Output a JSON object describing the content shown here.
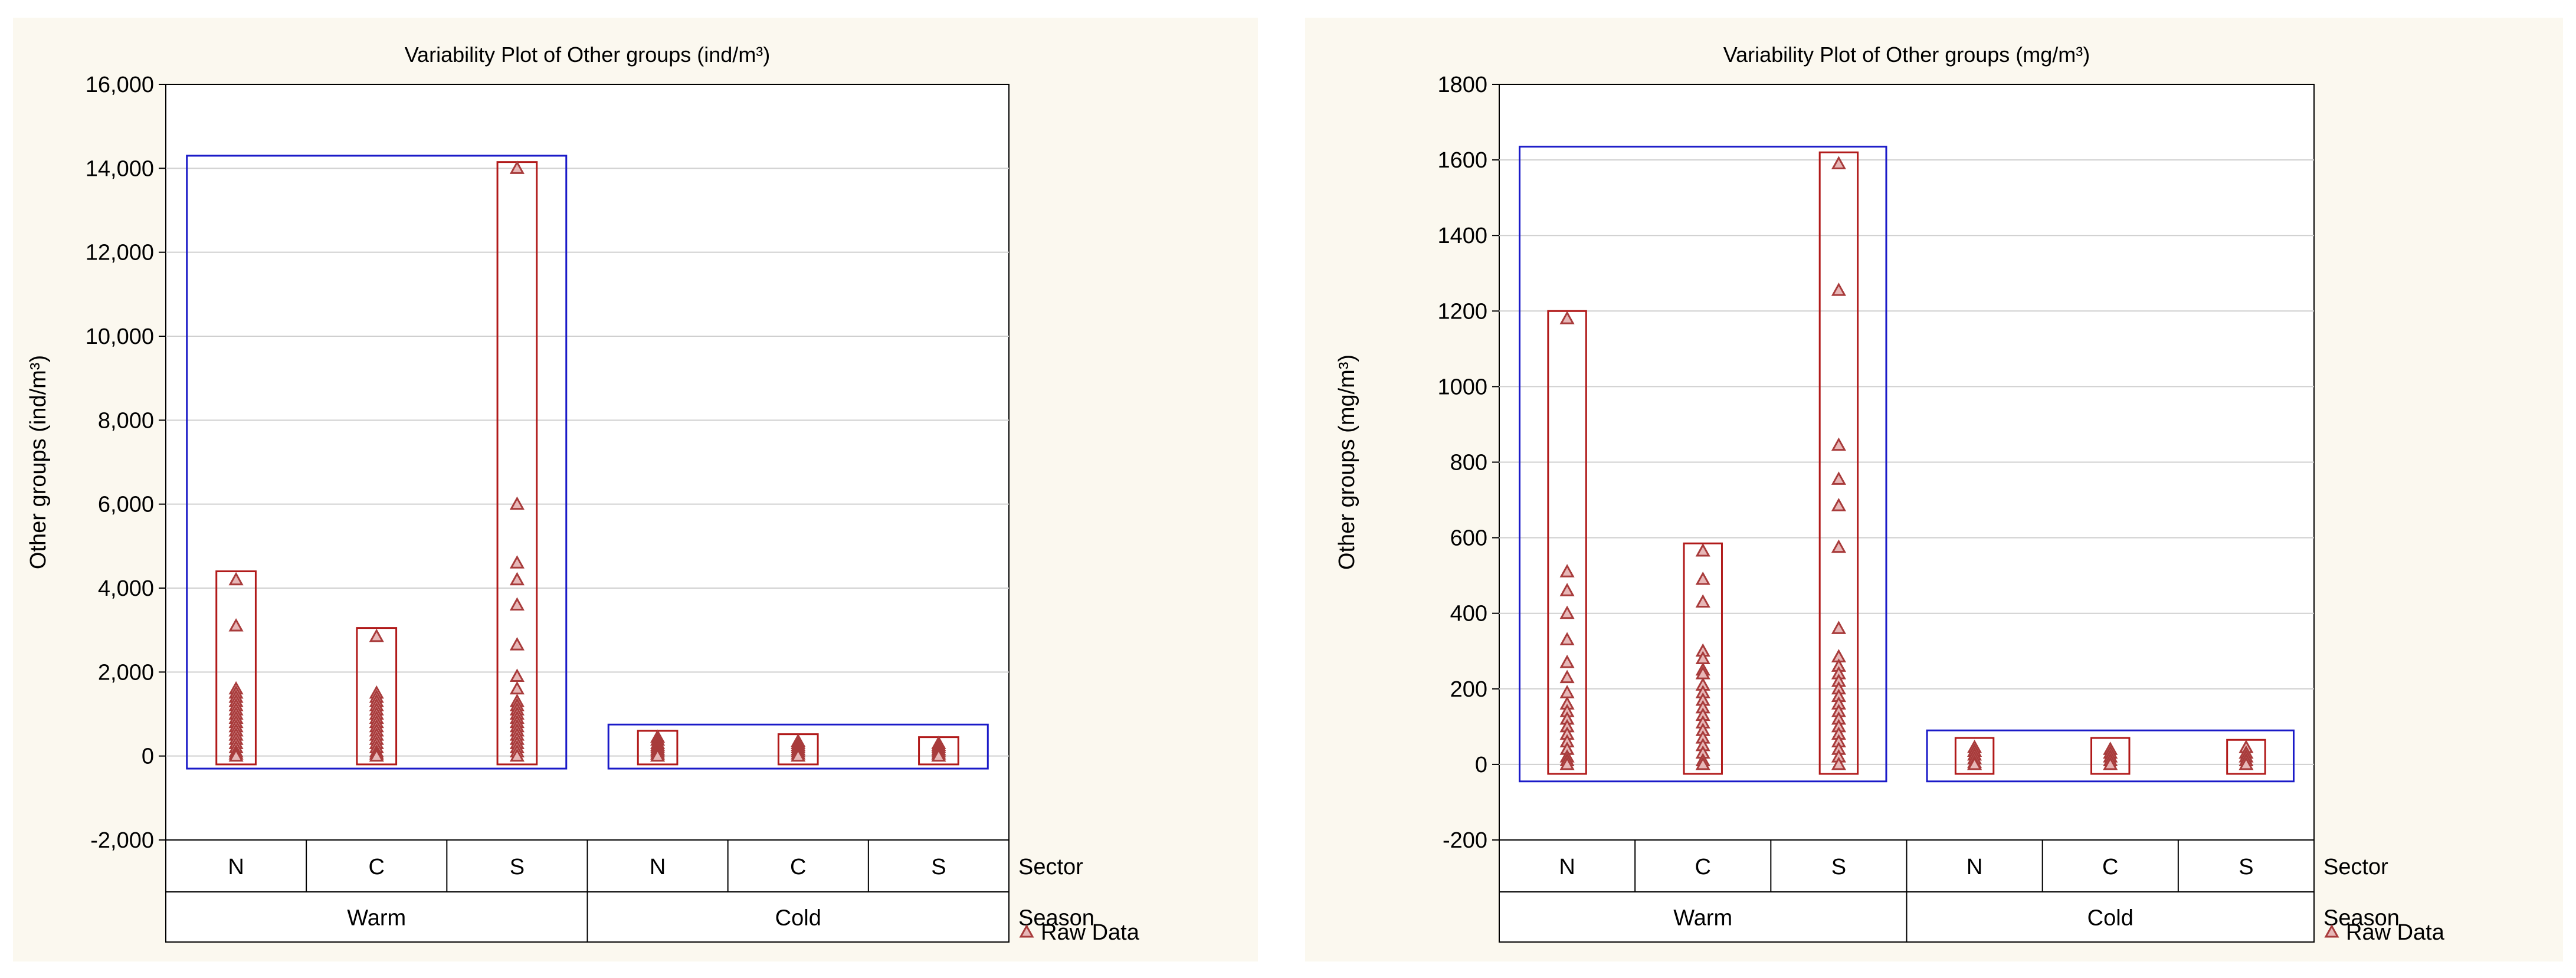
{
  "colors": {
    "panel_background": "#fbf8ef",
    "plot_background": "#ffffff",
    "raw_data": "#a83b3b",
    "group_box": "#b11a1a",
    "season_box": "#1a1ac8",
    "gridline": "#cfcfcf"
  },
  "legend": {
    "label": "Raw Data",
    "icon": "triangle-marker-icon"
  },
  "chart_data": [
    {
      "type": "scatter",
      "title": "Variability Plot of Other groups (ind/m³)",
      "ylabel": "Other groups (ind/m³)",
      "xlabel": "",
      "ylim": [
        -2000,
        16000
      ],
      "yticks": [
        -2000,
        0,
        2000,
        4000,
        6000,
        8000,
        10000,
        12000,
        14000,
        16000
      ],
      "ytick_labels": [
        "-2,000",
        "0",
        "2,000",
        "4,000",
        "6,000",
        "8,000",
        "10,000",
        "12,000",
        "14,000",
        "16,000"
      ],
      "grid": true,
      "factor_labels": {
        "inner": "Sector",
        "outer": "Season"
      },
      "seasons": [
        {
          "label": "Warm",
          "box": [
            -300,
            14300
          ]
        },
        {
          "label": "Cold",
          "box": [
            -300,
            750
          ]
        }
      ],
      "groups": [
        {
          "season": "Warm",
          "sector": "N",
          "box": [
            -200,
            4400
          ],
          "values": [
            4200,
            3100,
            1600,
            1500,
            1400,
            1300,
            1200,
            1100,
            1000,
            900,
            800,
            700,
            600,
            500,
            400,
            300,
            200,
            100,
            50,
            0
          ]
        },
        {
          "season": "Warm",
          "sector": "C",
          "box": [
            -200,
            3050
          ],
          "values": [
            2850,
            1500,
            1400,
            1300,
            1200,
            1100,
            1000,
            900,
            800,
            700,
            600,
            500,
            400,
            300,
            200,
            100,
            50,
            0
          ]
        },
        {
          "season": "Warm",
          "sector": "S",
          "box": [
            -200,
            14150
          ],
          "values": [
            14000,
            6000,
            4600,
            4200,
            3600,
            2650,
            1900,
            1600,
            1300,
            1200,
            1100,
            1000,
            900,
            800,
            700,
            600,
            500,
            400,
            300,
            200,
            100,
            0
          ]
        },
        {
          "season": "Cold",
          "sector": "N",
          "box": [
            -200,
            600
          ],
          "values": [
            450,
            380,
            300,
            250,
            200,
            150,
            100,
            50,
            0
          ]
        },
        {
          "season": "Cold",
          "sector": "C",
          "box": [
            -200,
            520
          ],
          "values": [
            350,
            300,
            250,
            200,
            150,
            100,
            50,
            0
          ]
        },
        {
          "season": "Cold",
          "sector": "S",
          "box": [
            -200,
            450
          ],
          "values": [
            300,
            250,
            200,
            150,
            100,
            50,
            0
          ]
        }
      ]
    },
    {
      "type": "scatter",
      "title": "Variability Plot of Other groups (mg/m³)",
      "ylabel": "Other groups (mg/m³)",
      "xlabel": "",
      "ylim": [
        -200,
        1800
      ],
      "yticks": [
        -200,
        0,
        200,
        400,
        600,
        800,
        1000,
        1200,
        1400,
        1600,
        1800
      ],
      "ytick_labels": [
        "-200",
        "0",
        "200",
        "400",
        "600",
        "800",
        "1000",
        "1200",
        "1400",
        "1600",
        "1800"
      ],
      "grid": true,
      "factor_labels": {
        "inner": "Sector",
        "outer": "Season"
      },
      "seasons": [
        {
          "label": "Warm",
          "box": [
            -45,
            1635
          ]
        },
        {
          "label": "Cold",
          "box": [
            -45,
            90
          ]
        }
      ],
      "groups": [
        {
          "season": "Warm",
          "sector": "N",
          "box": [
            -25,
            1200
          ],
          "values": [
            1180,
            510,
            460,
            400,
            330,
            270,
            230,
            190,
            160,
            140,
            120,
            100,
            80,
            60,
            40,
            20,
            10,
            0
          ]
        },
        {
          "season": "Warm",
          "sector": "C",
          "box": [
            -25,
            585
          ],
          "values": [
            565,
            490,
            430,
            300,
            280,
            250,
            240,
            210,
            190,
            170,
            150,
            130,
            110,
            90,
            70,
            50,
            30,
            10,
            0
          ]
        },
        {
          "season": "Warm",
          "sector": "S",
          "box": [
            -25,
            1620
          ],
          "values": [
            1590,
            1255,
            845,
            755,
            685,
            575,
            360,
            285,
            260,
            240,
            220,
            200,
            180,
            160,
            140,
            120,
            100,
            80,
            60,
            40,
            20,
            0
          ]
        },
        {
          "season": "Cold",
          "sector": "N",
          "box": [
            -25,
            70
          ],
          "values": [
            45,
            35,
            25,
            15,
            5,
            0
          ]
        },
        {
          "season": "Cold",
          "sector": "C",
          "box": [
            -25,
            70
          ],
          "values": [
            40,
            30,
            20,
            10,
            0
          ]
        },
        {
          "season": "Cold",
          "sector": "S",
          "box": [
            -25,
            65
          ],
          "values": [
            45,
            30,
            20,
            10,
            0
          ]
        }
      ]
    }
  ]
}
